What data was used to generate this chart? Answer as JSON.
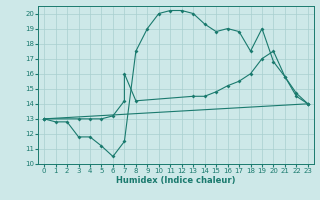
{
  "xlabel": "Humidex (Indice chaleur)",
  "xlim": [
    -0.5,
    23.5
  ],
  "ylim": [
    10,
    20.5
  ],
  "yticks": [
    10,
    11,
    12,
    13,
    14,
    15,
    16,
    17,
    18,
    19,
    20
  ],
  "xticks": [
    0,
    1,
    2,
    3,
    4,
    5,
    6,
    7,
    8,
    9,
    10,
    11,
    12,
    13,
    14,
    15,
    16,
    17,
    18,
    19,
    20,
    21,
    22,
    23
  ],
  "bg_color": "#cde8e8",
  "line_color": "#1a7a6e",
  "grid_color": "#a8cfcf",
  "curve1_x": [
    0,
    1,
    2,
    3,
    4,
    5,
    6,
    7,
    8,
    9,
    10,
    11,
    12,
    13,
    14,
    15,
    16,
    17,
    18,
    19,
    20,
    21,
    22,
    23
  ],
  "curve1_y": [
    13.0,
    12.8,
    12.8,
    11.8,
    11.8,
    11.2,
    10.5,
    11.5,
    17.5,
    19.0,
    20.0,
    20.2,
    20.2,
    20.0,
    19.3,
    18.8,
    19.0,
    18.8,
    17.5,
    19.0,
    16.8,
    15.8,
    14.7,
    14.0
  ],
  "curve2_x": [
    0,
    3,
    4,
    5,
    6,
    7,
    7,
    8,
    13,
    14,
    15,
    16,
    17,
    18,
    19,
    20,
    21,
    22,
    23
  ],
  "curve2_y": [
    13.0,
    13.0,
    13.0,
    13.0,
    13.2,
    14.2,
    16.0,
    14.2,
    14.5,
    14.5,
    14.8,
    15.2,
    15.5,
    16.0,
    17.0,
    17.5,
    15.8,
    14.5,
    14.0
  ],
  "curve3_x": [
    0,
    23
  ],
  "curve3_y": [
    13.0,
    14.0
  ]
}
